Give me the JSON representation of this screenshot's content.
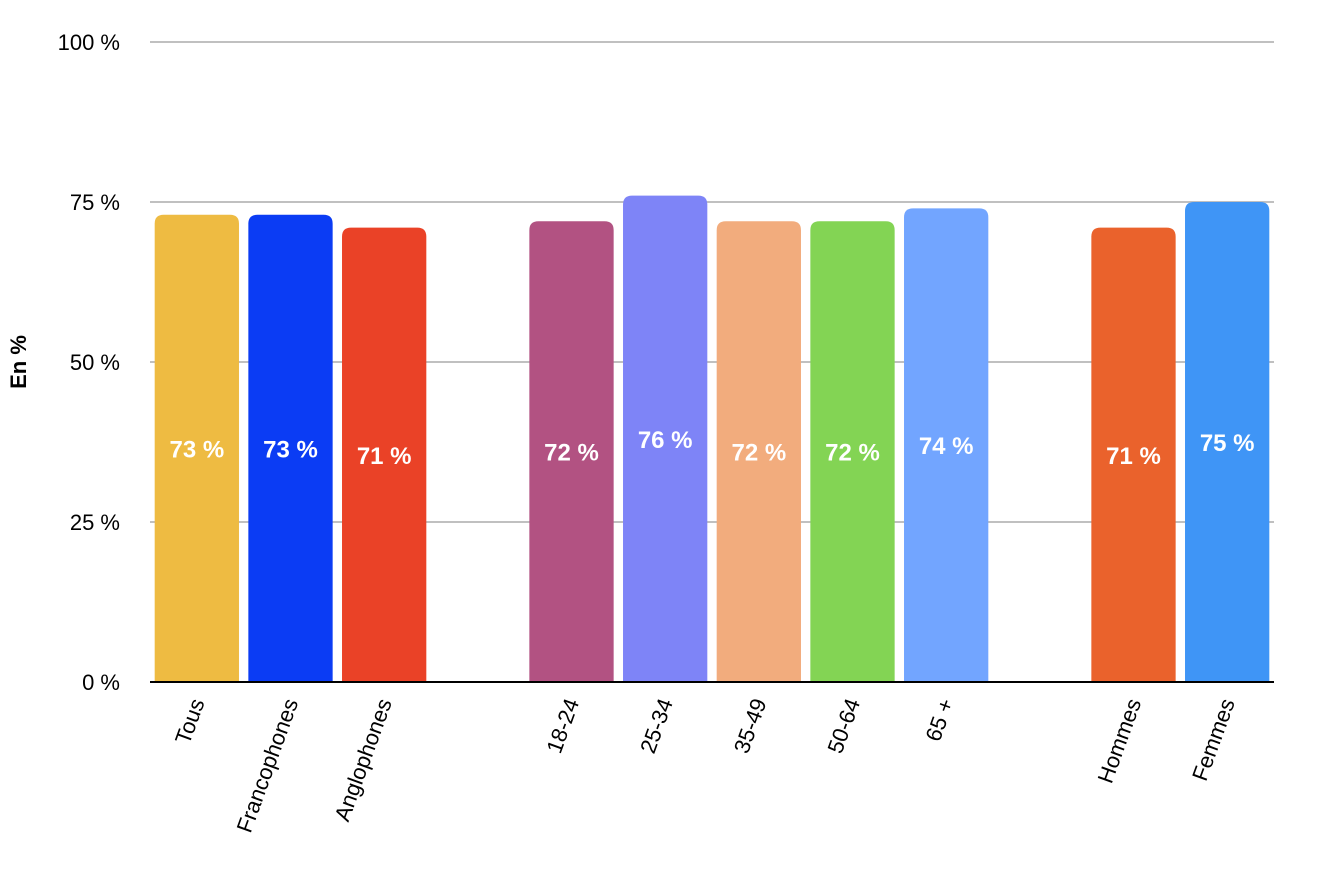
{
  "chart_data": {
    "type": "bar",
    "title": "",
    "xlabel": "",
    "ylabel": "En %",
    "ylim": [
      0,
      100
    ],
    "yticks": [
      0,
      25,
      50,
      75,
      100
    ],
    "ytick_suffix": " %",
    "grid": true,
    "legend": "none",
    "categories": [
      "Tous",
      "Francophones",
      "Anglophones",
      "18-24",
      "25-34",
      "35-49",
      "50-64",
      "65 +",
      "Hommes",
      "Femmes"
    ],
    "groups": [
      [
        "Tous",
        "Francophones",
        "Anglophones"
      ],
      [
        "18-24",
        "25-34",
        "35-49",
        "50-64",
        "65 +"
      ],
      [
        "Hommes",
        "Femmes"
      ]
    ],
    "values": [
      73,
      73,
      71,
      72,
      76,
      72,
      72,
      74,
      71,
      75
    ],
    "data_labels": [
      "73 %",
      "73 %",
      "71 %",
      "72 %",
      "76 %",
      "72 %",
      "72 %",
      "74 %",
      "71 %",
      "75 %"
    ],
    "colors": [
      "#EEBB42",
      "#0B3CF4",
      "#EA4227",
      "#B25282",
      "#7E84F7",
      "#F2AC7D",
      "#83D454",
      "#72A5FF",
      "#EA622C",
      "#3F95F6"
    ]
  }
}
